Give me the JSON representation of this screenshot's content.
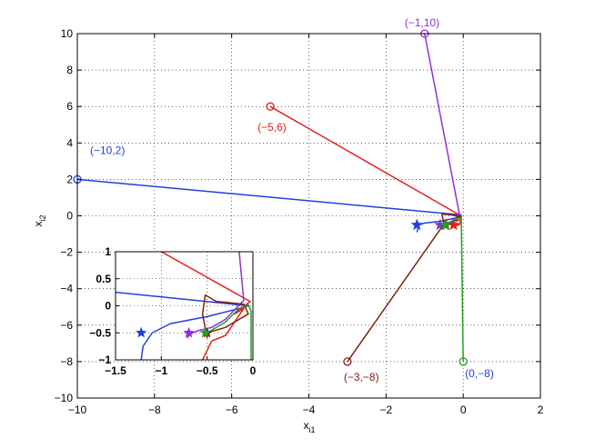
{
  "chart_data": [
    {
      "type": "line",
      "role": "main",
      "title": "",
      "xlabel": {
        "base": "x",
        "sub": "i1"
      },
      "ylabel": {
        "base": "x",
        "sub": "i2"
      },
      "xlim": [
        -10,
        2
      ],
      "ylim": [
        -10,
        10
      ],
      "xticks": [
        -10,
        -8,
        -6,
        -4,
        -2,
        0,
        2
      ],
      "yticks": [
        -10,
        -8,
        -6,
        -4,
        -2,
        0,
        2,
        4,
        6,
        8,
        10
      ],
      "xtick_labels": [
        "−10",
        "−8",
        "−6",
        "−4",
        "−2",
        "0",
        "2"
      ],
      "ytick_labels": [
        "−10",
        "−8",
        "−6",
        "−4",
        "−2",
        "0",
        "2",
        "4",
        "6",
        "8",
        "10"
      ],
      "grid": true,
      "series": [
        {
          "color": "#2040e0",
          "start": [
            -10,
            2
          ],
          "label": "(−10,2)",
          "points": [
            [
              -10,
              2
            ],
            [
              -0.05,
              0.05
            ],
            [
              -0.15,
              -0.1
            ],
            [
              -0.6,
              -0.3
            ],
            [
              -1.0,
              -0.4
            ],
            [
              -1.15,
              -0.5
            ],
            [
              -1.2,
              -0.9
            ]
          ],
          "star": [
            -1.2,
            -0.5
          ]
        },
        {
          "color": "#e02020",
          "start": [
            -5,
            6
          ],
          "label": "(−5,6)",
          "points": [
            [
              -5,
              6
            ],
            [
              -0.1,
              0.05
            ],
            [
              -0.2,
              -0.3
            ],
            [
              -0.05,
              -0.2
            ],
            [
              -0.1,
              -0.5
            ],
            [
              -0.25,
              -0.55
            ]
          ],
          "star": [
            -0.25,
            -0.5
          ]
        },
        {
          "color": "#9030d8",
          "start": [
            -1,
            10
          ],
          "label": "(−1,10)",
          "points": [
            [
              -1,
              10
            ],
            [
              -0.1,
              0.1
            ],
            [
              -0.3,
              -0.3
            ],
            [
              -0.5,
              -0.45
            ],
            [
              -0.6,
              -0.5
            ]
          ],
          "star": [
            -0.6,
            -0.5
          ]
        },
        {
          "color": "#802010",
          "start": [
            -3,
            -8
          ],
          "label": "(−3,−8)",
          "points": [
            [
              -3,
              -8
            ],
            [
              -0.5,
              -0.45
            ],
            [
              -0.55,
              0.1
            ],
            [
              -0.3,
              0.05
            ],
            [
              -0.05,
              -0.05
            ],
            [
              -0.45,
              -0.5
            ]
          ],
          "star": [
            -0.45,
            -0.5
          ]
        },
        {
          "color": "#20a020",
          "start": [
            0,
            -8
          ],
          "label": "(0,−8)",
          "label_color": "#2040e0",
          "points": [
            [
              0,
              -8
            ],
            [
              -0.05,
              -0.1
            ],
            [
              -0.2,
              -0.2
            ],
            [
              -0.4,
              -0.45
            ],
            [
              -0.47,
              -0.5
            ]
          ],
          "star": [
            -0.47,
            -0.5
          ]
        }
      ]
    },
    {
      "type": "line",
      "role": "inset",
      "xlim": [
        -1.5,
        0
      ],
      "ylim": [
        -1,
        1
      ],
      "xticks": [
        -1.5,
        -1,
        -0.5,
        0
      ],
      "yticks": [
        -1,
        -0.5,
        0,
        0.5,
        1
      ],
      "xtick_labels": [
        "−1.5",
        "−1",
        "−0.5",
        "0"
      ],
      "ytick_labels": [
        "−1",
        "−0.5",
        "0",
        "0.5",
        "1"
      ],
      "grid": true,
      "series": [
        {
          "color": "#2040e0",
          "points": [
            [
              -1.5,
              0.25
            ],
            [
              -0.05,
              0.0
            ],
            [
              -0.15,
              -0.05
            ],
            [
              -0.5,
              -0.2
            ],
            [
              -0.9,
              -0.33
            ],
            [
              -1.1,
              -0.5
            ],
            [
              -1.2,
              -0.75
            ],
            [
              -1.22,
              -1.0
            ]
          ],
          "star": [
            -1.22,
            -0.5
          ]
        },
        {
          "color": "#e02020",
          "points": [
            [
              -1.0,
              1.0
            ],
            [
              -0.03,
              0.08
            ],
            [
              -0.2,
              -0.15
            ],
            [
              -0.1,
              -0.05
            ],
            [
              -0.3,
              -0.55
            ],
            [
              -0.45,
              -0.65
            ],
            [
              -0.55,
              -1.0
            ]
          ],
          "star": null
        },
        {
          "color": "#9030d8",
          "points": [
            [
              -0.15,
              1.0
            ],
            [
              -0.1,
              0.1
            ],
            [
              -0.3,
              -0.25
            ],
            [
              -0.45,
              -0.4
            ],
            [
              -0.6,
              -0.46
            ],
            [
              -0.68,
              -0.52
            ],
            [
              -0.72,
              -0.6
            ]
          ],
          "star": [
            -0.7,
            -0.5
          ]
        },
        {
          "color": "#802010",
          "points": [
            [
              -0.5,
              -0.6
            ],
            [
              -0.55,
              -0.15
            ],
            [
              -0.52,
              0.2
            ],
            [
              -0.4,
              0.08
            ],
            [
              -0.1,
              0.03
            ],
            [
              -0.05,
              -0.15
            ],
            [
              -0.3,
              -0.4
            ],
            [
              -0.5,
              -0.5
            ]
          ],
          "star": [
            -0.5,
            -0.5
          ]
        },
        {
          "color": "#20a020",
          "points": [
            [
              -0.02,
              -1.0
            ],
            [
              -0.02,
              -0.1
            ],
            [
              -0.05,
              0.02
            ],
            [
              -0.15,
              -0.05
            ],
            [
              -0.3,
              -0.3
            ],
            [
              -0.45,
              -0.45
            ],
            [
              -0.5,
              -0.5
            ]
          ],
          "star": [
            -0.52,
            -0.5
          ]
        }
      ]
    }
  ]
}
